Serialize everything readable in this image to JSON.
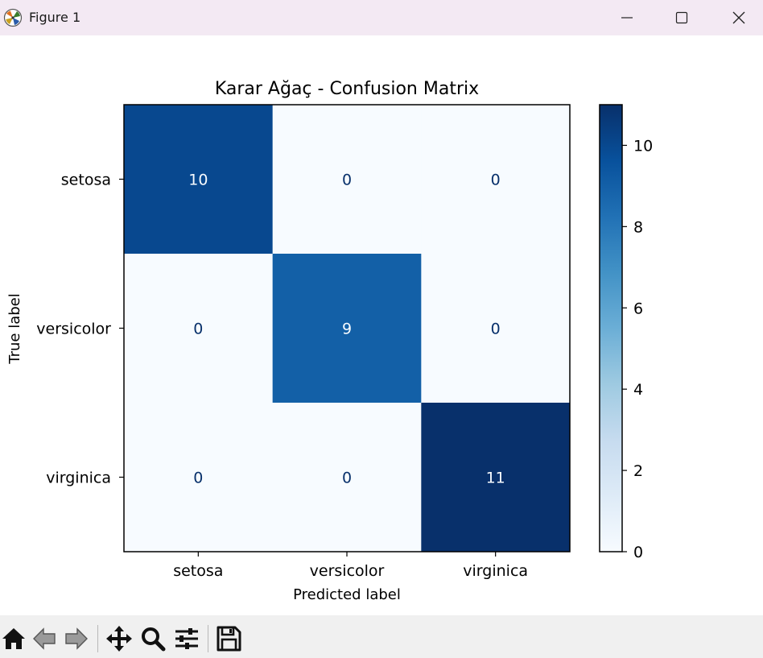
{
  "window": {
    "title": "Figure 1",
    "controls": [
      "minimize-icon",
      "maximize-icon",
      "close-icon"
    ]
  },
  "toolbar": {
    "buttons": [
      "home-icon",
      "back-icon",
      "forward-icon",
      "pan-icon",
      "zoom-icon",
      "configure-subplots-icon",
      "save-icon"
    ]
  },
  "chart_data": {
    "type": "heatmap",
    "title": "Karar Ağaç - Confusion Matrix",
    "xlabel": "Predicted label",
    "ylabel": "True label",
    "x_categories": [
      "setosa",
      "versicolor",
      "virginica"
    ],
    "y_categories": [
      "setosa",
      "versicolor",
      "virginica"
    ],
    "values": [
      [
        10,
        0,
        0
      ],
      [
        0,
        9,
        0
      ],
      [
        0,
        0,
        11
      ]
    ],
    "colormap": "Blues",
    "vmin": 0,
    "vmax": 11,
    "colorbar_ticks": [
      0,
      2,
      4,
      6,
      8,
      10
    ],
    "grid": false
  }
}
